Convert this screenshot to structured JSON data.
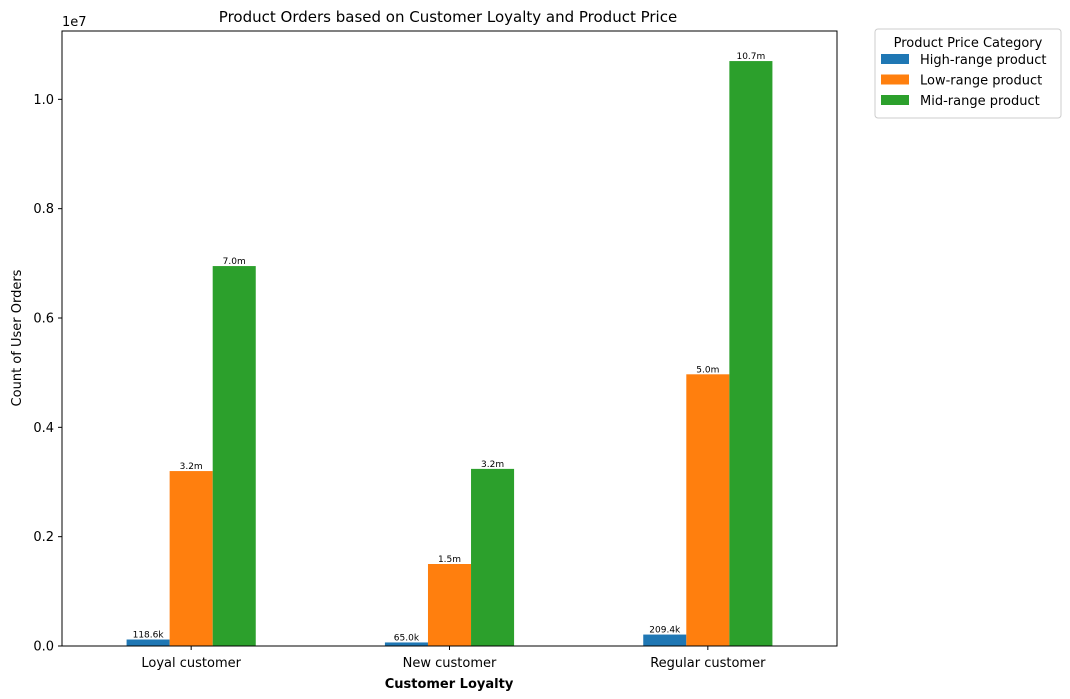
{
  "chart_data": {
    "type": "bar",
    "title": "Product Orders based on Customer Loyalty and Product Price",
    "xlabel": "Customer Loyalty",
    "ylabel": "Count of User Orders",
    "y_scale_label": "1e7",
    "ylim": [
      0,
      11250000
    ],
    "y_ticks": [
      {
        "value": 0,
        "label": "0.0"
      },
      {
        "value": 2000000,
        "label": "0.2"
      },
      {
        "value": 4000000,
        "label": "0.4"
      },
      {
        "value": 6000000,
        "label": "0.6"
      },
      {
        "value": 8000000,
        "label": "0.8"
      },
      {
        "value": 10000000,
        "label": "1.0"
      }
    ],
    "categories": [
      "Loyal customer",
      "New customer",
      "Regular customer"
    ],
    "series": [
      {
        "name": "High-range product",
        "color": "#1f77b4",
        "values": [
          118600,
          65000,
          209400
        ],
        "labels": [
          "118.6k",
          "65.0k",
          "209.4k"
        ]
      },
      {
        "name": "Low-range product",
        "color": "#ff7f0e",
        "values": [
          3200000,
          1500000,
          4970000
        ],
        "labels": [
          "3.2m",
          "1.5m",
          "5.0m"
        ]
      },
      {
        "name": "Mid-range product",
        "color": "#2ca02c",
        "values": [
          6950000,
          3240000,
          10700000
        ],
        "labels": [
          "7.0m",
          "3.2m",
          "10.7m"
        ]
      }
    ],
    "legend": {
      "title": "Product Price Category",
      "placement": "outside-top-right"
    },
    "grid": false
  }
}
